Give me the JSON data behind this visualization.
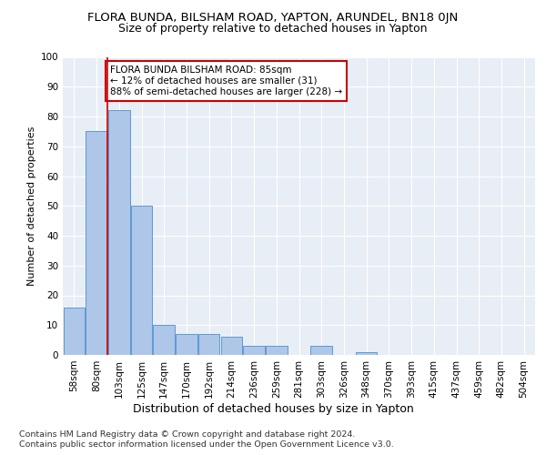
{
  "title1": "FLORA BUNDA, BILSHAM ROAD, YAPTON, ARUNDEL, BN18 0JN",
  "title2": "Size of property relative to detached houses in Yapton",
  "xlabel": "Distribution of detached houses by size in Yapton",
  "ylabel": "Number of detached properties",
  "categories": [
    "58sqm",
    "80sqm",
    "103sqm",
    "125sqm",
    "147sqm",
    "170sqm",
    "192sqm",
    "214sqm",
    "236sqm",
    "259sqm",
    "281sqm",
    "303sqm",
    "326sqm",
    "348sqm",
    "370sqm",
    "393sqm",
    "415sqm",
    "437sqm",
    "459sqm",
    "482sqm",
    "504sqm"
  ],
  "values": [
    16,
    75,
    82,
    50,
    10,
    7,
    7,
    6,
    3,
    3,
    0,
    3,
    0,
    1,
    0,
    0,
    0,
    0,
    0,
    0,
    0
  ],
  "bar_color": "#aec6e8",
  "bar_edge_color": "#5b9bd5",
  "red_line_x": 1.5,
  "annotation_text": "FLORA BUNDA BILSHAM ROAD: 85sqm\n← 12% of detached houses are smaller (31)\n88% of semi-detached houses are larger (228) →",
  "annotation_box_color": "#ffffff",
  "annotation_box_edge": "#cc0000",
  "ylim": [
    0,
    100
  ],
  "yticks": [
    0,
    10,
    20,
    30,
    40,
    50,
    60,
    70,
    80,
    90,
    100
  ],
  "bg_color": "#e8eef5",
  "footer1": "Contains HM Land Registry data © Crown copyright and database right 2024.",
  "footer2": "Contains public sector information licensed under the Open Government Licence v3.0.",
  "title1_fontsize": 9.5,
  "title2_fontsize": 9,
  "xlabel_fontsize": 9,
  "ylabel_fontsize": 8,
  "tick_fontsize": 7.5,
  "annotation_fontsize": 7.5
}
